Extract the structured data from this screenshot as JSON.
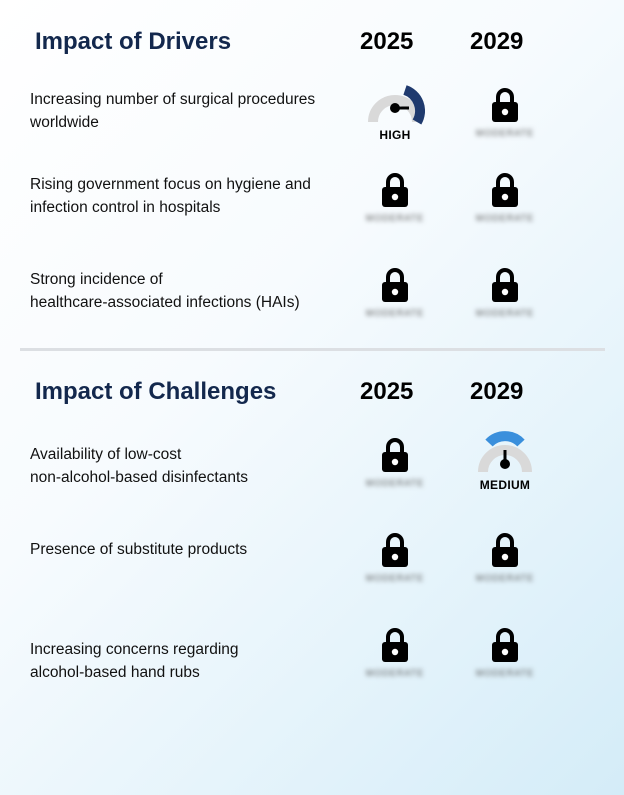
{
  "drivers": {
    "title": "Impact of Drivers",
    "year1": "2025",
    "year2": "2029",
    "rows": [
      {
        "label_line1": "Increasing number of surgical procedures",
        "label_line2": "worldwide",
        "y2025": "HIGH",
        "y2029": "locked",
        "blur": "MODERATE"
      },
      {
        "label_line1": "Rising government focus on hygiene and",
        "label_line2": "infection control in hospitals",
        "y2025": "locked",
        "y2029": "locked",
        "blur": "MODERATE"
      },
      {
        "label_line1": "Strong incidence of",
        "label_line2": "healthcare-associated infections (HAIs)",
        "y2025": "locked",
        "y2029": "locked",
        "blur": "MODERATE"
      }
    ]
  },
  "challenges": {
    "title": "Impact of Challenges",
    "year1": "2025",
    "year2": "2029",
    "rows": [
      {
        "label_line1": "Availability of low-cost",
        "label_line2": "non-alcohol-based disinfectants",
        "y2025": "locked",
        "y2029": "MEDIUM",
        "blur": "MODERATE"
      },
      {
        "label_line1": "Presence of substitute products",
        "label_line2": "",
        "y2025": "locked",
        "y2029": "locked",
        "blur": "MODERATE"
      },
      {
        "label_line1": "Increasing concerns regarding",
        "label_line2": "alcohol-based hand rubs",
        "y2025": "locked",
        "y2029": "locked",
        "blur": "MODERATE"
      }
    ]
  },
  "colors": {
    "title": "#13284d",
    "high_gauge": "#1f3a6e",
    "medium_gauge": "#3a8fdc",
    "gauge_track": "#d9d9d9"
  },
  "icons": {
    "locked": "lock-icon",
    "gauge": "gauge-icon"
  }
}
